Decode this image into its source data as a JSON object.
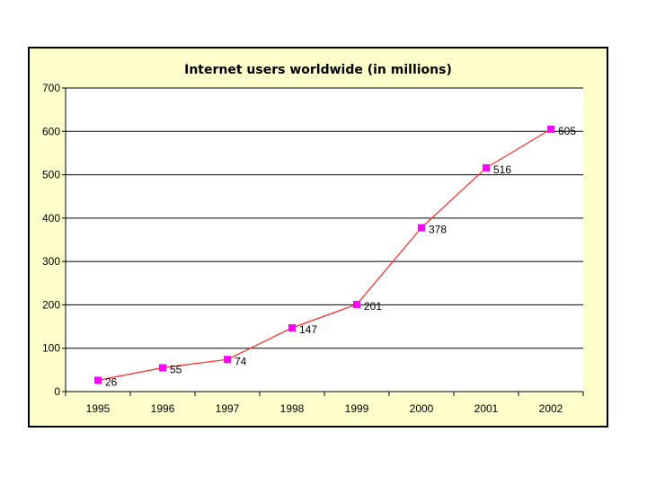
{
  "chart_data": {
    "type": "line",
    "title": "Internet users worldwide (in millions)",
    "xlabel": "",
    "ylabel": "",
    "categories": [
      "1995",
      "1996",
      "1997",
      "1998",
      "1999",
      "2000",
      "2001",
      "2002"
    ],
    "series": [
      {
        "values": [
          26,
          55,
          74,
          147,
          201,
          378,
          516,
          605
        ]
      }
    ],
    "data_labels": [
      "26",
      "55",
      "74",
      "147",
      "201",
      "378",
      "516",
      "605"
    ],
    "y_ticks": [
      "0",
      "100",
      "200",
      "300",
      "400",
      "500",
      "600",
      "700"
    ],
    "ylim": [
      0,
      700
    ],
    "grid": true,
    "legend": "none",
    "colors": {
      "line": "#ff3333",
      "marker": "#ff00ff",
      "plot_background": "#ffffff",
      "chart_background": "#ffffcc",
      "grid": "#000000"
    }
  }
}
